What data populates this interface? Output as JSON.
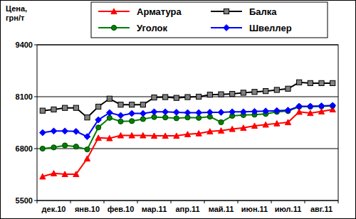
{
  "chart_data": {
    "type": "line",
    "y_label": "Цена, грн/т",
    "categories": [
      null,
      "дек.10",
      null,
      null,
      "янв.10",
      null,
      null,
      "фев.10",
      null,
      null,
      "мар.11",
      null,
      null,
      "апр.11",
      null,
      null,
      "май.11",
      null,
      null,
      "июн.11",
      null,
      null,
      "июл.11",
      null,
      null,
      "авг.11",
      null
    ],
    "series": [
      {
        "name": "Арматура",
        "color": "#ff0000",
        "marker": "triangle",
        "values": [
          6100,
          6180,
          6160,
          6160,
          6550,
          7070,
          7060,
          7130,
          7130,
          7130,
          7120,
          7120,
          7120,
          7160,
          7180,
          7230,
          7250,
          7290,
          7320,
          7370,
          7400,
          7430,
          7460,
          7720,
          7690,
          7730,
          7780
        ]
      },
      {
        "name": "Балка",
        "color": "#808080",
        "marker": "square",
        "values": [
          7750,
          7780,
          7820,
          7820,
          7580,
          7850,
          8050,
          7900,
          7900,
          7900,
          8080,
          8090,
          8070,
          8090,
          8100,
          8150,
          8160,
          8170,
          8200,
          8220,
          8240,
          8270,
          8300,
          8460,
          8440,
          8440,
          8440
        ]
      },
      {
        "name": "Уголок",
        "color": "#008000",
        "marker": "circle",
        "values": [
          6800,
          6830,
          6880,
          6850,
          6780,
          7330,
          7570,
          7480,
          7490,
          7540,
          7590,
          7580,
          7560,
          7580,
          7570,
          7600,
          7460,
          7620,
          7640,
          7650,
          7670,
          7720,
          7740,
          7850,
          7850,
          7860,
          7870
        ]
      },
      {
        "name": "Швеллер",
        "color": "#0000ff",
        "marker": "diamond",
        "values": [
          7200,
          7240,
          7240,
          7230,
          7100,
          7520,
          7700,
          7630,
          7680,
          7680,
          7720,
          7720,
          7710,
          7700,
          7700,
          7710,
          7710,
          7720,
          7720,
          7730,
          7740,
          7750,
          7760,
          7860,
          7860,
          7870,
          7880
        ]
      }
    ],
    "ylim": [
      5500,
      9400
    ],
    "yticks": [
      5500,
      6800,
      8100,
      9400
    ],
    "grid": true,
    "legend": "top"
  }
}
